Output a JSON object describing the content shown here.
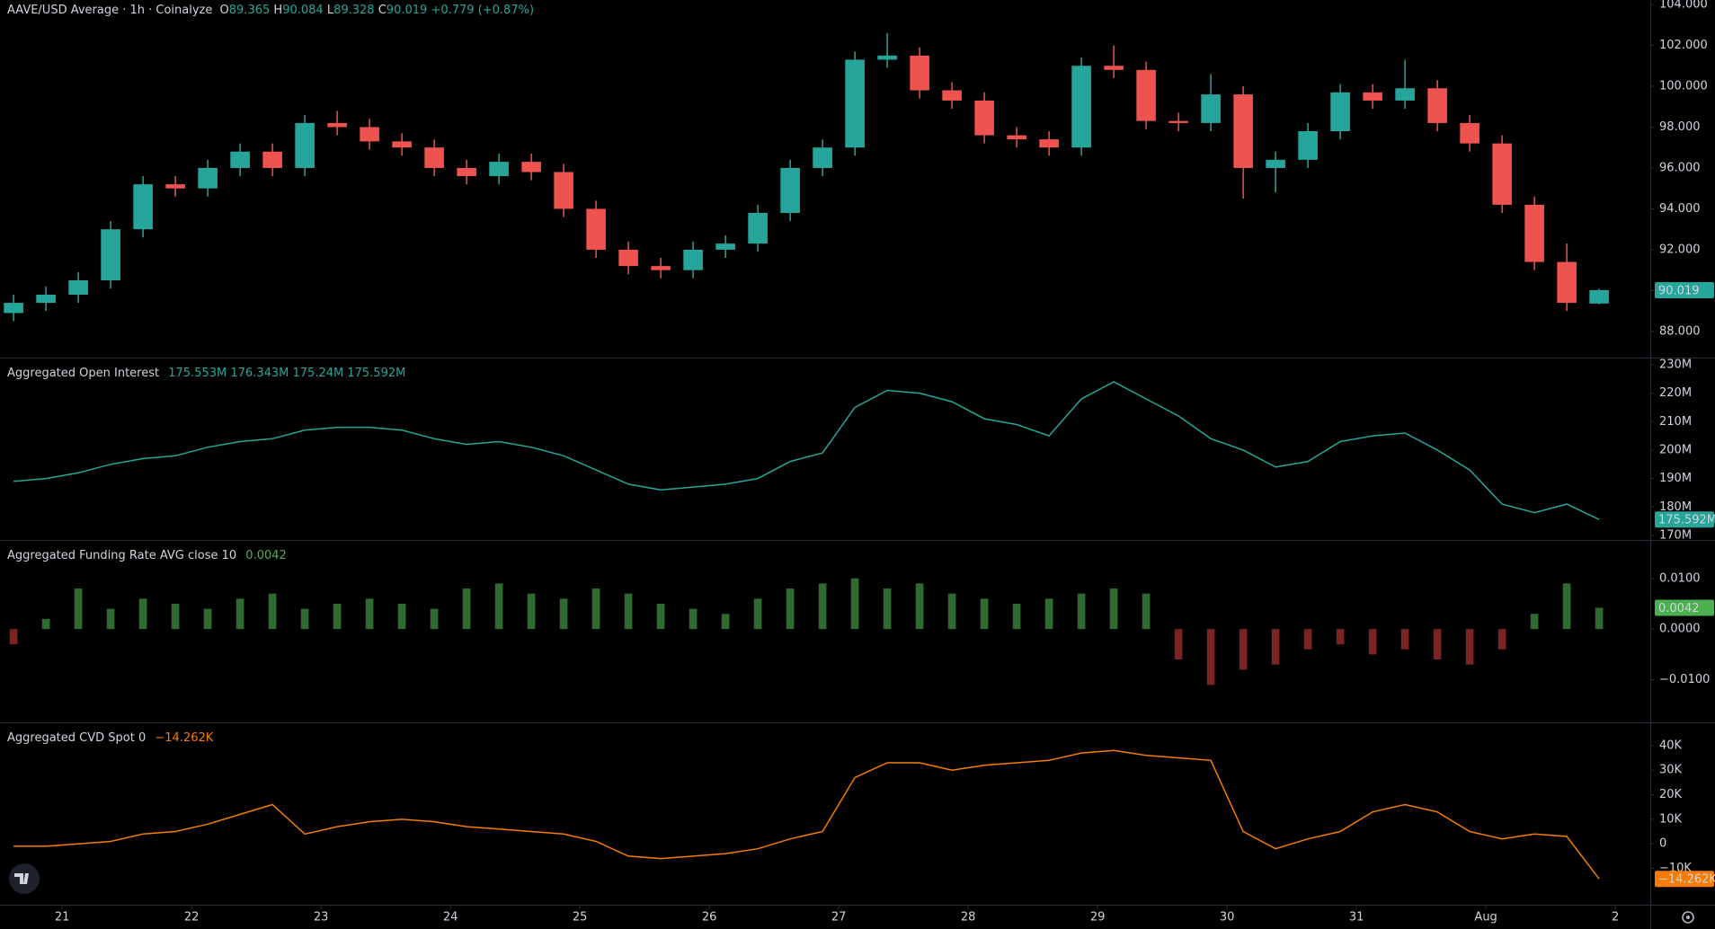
{
  "chart_data": [
    {
      "type": "candlestick",
      "title": "AAVE/USD Average · 1h · Coinalyze",
      "ohlc_labels": [
        "O",
        "H",
        "L",
        "C"
      ],
      "change": "+0.779 (+0.87%)",
      "up_color": "#26a69a",
      "down_color": "#ef5350",
      "x": [
        20.625,
        20.875,
        21.125,
        21.375,
        21.625,
        21.875,
        22.125,
        22.375,
        22.625,
        22.875,
        23.125,
        23.375,
        23.625,
        23.875,
        24.125,
        24.375,
        24.625,
        24.875,
        25.125,
        25.375,
        25.625,
        25.875,
        26.125,
        26.375,
        26.625,
        26.875,
        27.125,
        27.375,
        27.625,
        27.875,
        28.125,
        28.375,
        28.625,
        28.875,
        29.125,
        29.375,
        29.625,
        29.875,
        30.125,
        30.375,
        30.625,
        30.875,
        31.125,
        31.375,
        31.625,
        31.875,
        32.125,
        32.375,
        32.625,
        32.875
      ],
      "open": [
        88.9,
        89.4,
        89.8,
        90.5,
        93.0,
        95.2,
        95.0,
        96.0,
        96.8,
        96.0,
        98.2,
        98.0,
        97.3,
        97.0,
        96.0,
        95.6,
        96.3,
        95.8,
        94.0,
        92.0,
        91.2,
        91.0,
        92.0,
        92.3,
        93.8,
        96.0,
        97.0,
        101.3,
        101.5,
        99.8,
        99.3,
        97.6,
        97.4,
        97.0,
        101.0,
        100.8,
        98.3,
        98.2,
        99.6,
        96.0,
        96.4,
        97.8,
        99.7,
        99.3,
        99.9,
        98.2,
        97.2,
        94.2,
        91.4,
        89.365
      ],
      "high": [
        89.8,
        90.2,
        90.9,
        93.4,
        95.6,
        95.6,
        96.4,
        97.2,
        97.2,
        98.6,
        98.8,
        98.4,
        97.7,
        97.4,
        96.4,
        96.7,
        96.7,
        96.2,
        94.4,
        92.4,
        91.6,
        92.4,
        92.7,
        94.2,
        96.4,
        97.4,
        101.7,
        102.6,
        101.9,
        100.2,
        99.7,
        98.0,
        97.8,
        101.4,
        102.0,
        101.2,
        98.7,
        100.6,
        100.0,
        96.8,
        98.2,
        100.1,
        100.1,
        101.3,
        100.3,
        98.6,
        97.6,
        94.6,
        92.3,
        90.084
      ],
      "low": [
        88.5,
        89.0,
        89.4,
        90.1,
        92.6,
        94.6,
        94.6,
        95.6,
        95.6,
        95.6,
        97.6,
        96.9,
        96.6,
        95.6,
        95.2,
        95.2,
        95.4,
        93.6,
        91.6,
        90.8,
        90.6,
        90.6,
        91.6,
        91.9,
        93.4,
        95.6,
        96.6,
        100.9,
        99.4,
        98.9,
        97.2,
        97.0,
        96.6,
        96.6,
        100.4,
        97.9,
        97.8,
        97.8,
        94.5,
        94.8,
        96.0,
        97.4,
        98.9,
        98.9,
        97.8,
        96.8,
        93.8,
        91.0,
        89.0,
        89.328
      ],
      "close": [
        89.4,
        89.8,
        90.5,
        93.0,
        95.2,
        95.0,
        96.0,
        96.8,
        96.0,
        98.2,
        98.0,
        97.3,
        97.0,
        96.0,
        95.6,
        96.3,
        95.8,
        94.0,
        92.0,
        91.2,
        91.0,
        92.0,
        92.3,
        93.8,
        96.0,
        97.0,
        101.3,
        101.5,
        99.8,
        99.3,
        97.6,
        97.4,
        97.0,
        101.0,
        100.8,
        98.3,
        98.2,
        99.6,
        96.0,
        96.4,
        97.8,
        99.7,
        99.3,
        99.9,
        98.2,
        97.2,
        94.2,
        91.4,
        89.4,
        90.019
      ],
      "xlim": [
        20.52,
        33.27
      ],
      "xticks": [
        21,
        22,
        23,
        24,
        25,
        26,
        27,
        28,
        29,
        30,
        31,
        {
          "value": 32,
          "label": "Aug"
        },
        {
          "value": 33,
          "label": "2"
        }
      ],
      "ylim": [
        86.72,
        104.22
      ],
      "yticks": [
        {
          "value": 88,
          "label": "88.000"
        },
        {
          "value": 90,
          "label": "90.000"
        },
        {
          "value": 92,
          "label": "92.000"
        },
        {
          "value": 94,
          "label": "94.000"
        },
        {
          "value": 96,
          "label": "96.000"
        },
        {
          "value": 98,
          "label": "98.000"
        },
        {
          "value": 100,
          "label": "100.000"
        },
        {
          "value": 102,
          "label": "102.000"
        },
        {
          "value": 104,
          "label": "104.000"
        }
      ]
    },
    {
      "type": "line",
      "title": "Aggregated Open Interest",
      "legend_values": [
        "175.553M",
        "176.343M",
        "175.24M",
        "175.592M"
      ],
      "color": "#26a69a",
      "values": [
        189,
        190,
        192,
        195,
        197,
        198,
        201,
        203,
        204,
        207,
        208,
        208,
        207,
        204,
        202,
        203,
        201,
        198,
        193,
        188,
        186,
        187,
        188,
        190,
        196,
        199,
        215,
        221,
        220,
        217,
        211,
        209,
        205,
        218,
        224,
        218,
        212,
        204,
        200,
        194,
        196,
        203,
        205,
        206,
        200,
        193,
        181,
        178,
        181,
        175.592
      ],
      "last_value_label": "175.592M",
      "ylim": [
        168.4,
        232.2
      ],
      "yticks": [
        {
          "value": 170,
          "label": "170M"
        },
        {
          "value": 180,
          "label": "180M"
        },
        {
          "value": 190,
          "label": "190M"
        },
        {
          "value": 200,
          "label": "200M"
        },
        {
          "value": 210,
          "label": "210M"
        },
        {
          "value": 220,
          "label": "220M"
        },
        {
          "value": 230,
          "label": "230M"
        }
      ]
    },
    {
      "type": "bar",
      "title": "Aggregated Funding Rate AVG close 10",
      "legend_value": "0.0042",
      "up_color": "#2e6b2e",
      "down_color": "#7a2424",
      "label_color": "#4caf50",
      "values": [
        -0.003,
        0.002,
        0.008,
        0.004,
        0.006,
        0.005,
        0.004,
        0.006,
        0.007,
        0.004,
        0.005,
        0.006,
        0.005,
        0.004,
        0.008,
        0.009,
        0.007,
        0.006,
        0.008,
        0.007,
        0.005,
        0.004,
        0.003,
        0.006,
        0.008,
        0.009,
        0.01,
        0.008,
        0.009,
        0.007,
        0.006,
        0.005,
        0.006,
        0.007,
        0.008,
        0.007,
        -0.006,
        -0.011,
        -0.008,
        -0.007,
        -0.004,
        -0.003,
        -0.005,
        -0.004,
        -0.006,
        -0.007,
        -0.004,
        0.003,
        0.009,
        0.0042
      ],
      "ylim": [
        -0.0184,
        0.0174
      ],
      "yticks": [
        {
          "value": -0.01,
          "label": "−0.0100"
        },
        {
          "value": 0,
          "label": "0.0000"
        },
        {
          "value": 0.01,
          "label": "0.0100"
        }
      ]
    },
    {
      "type": "line",
      "title": "Aggregated CVD Spot 0",
      "color": "#f57c00",
      "values": [
        -1,
        -1,
        0,
        1,
        4,
        5,
        8,
        12,
        16,
        4,
        7,
        9,
        10,
        9,
        7,
        6,
        5,
        4,
        1,
        -5,
        -6,
        -5,
        -4,
        -2,
        2,
        5,
        27,
        33,
        33,
        30,
        32,
        33,
        34,
        37,
        38,
        36,
        35,
        34,
        5,
        -2,
        2,
        5,
        13,
        16,
        13,
        5,
        2,
        4,
        3,
        -14.262
      ],
      "last_value_label": "−14.262K",
      "ylim": [
        -24.8,
        49.1
      ],
      "yticks": [
        {
          "value": -10,
          "label": "−10K"
        },
        0,
        {
          "value": 10,
          "label": "10K"
        },
        {
          "value": 20,
          "label": "20K"
        },
        {
          "value": 30,
          "label": "30K"
        },
        {
          "value": 40,
          "label": "40K"
        }
      ]
    }
  ]
}
